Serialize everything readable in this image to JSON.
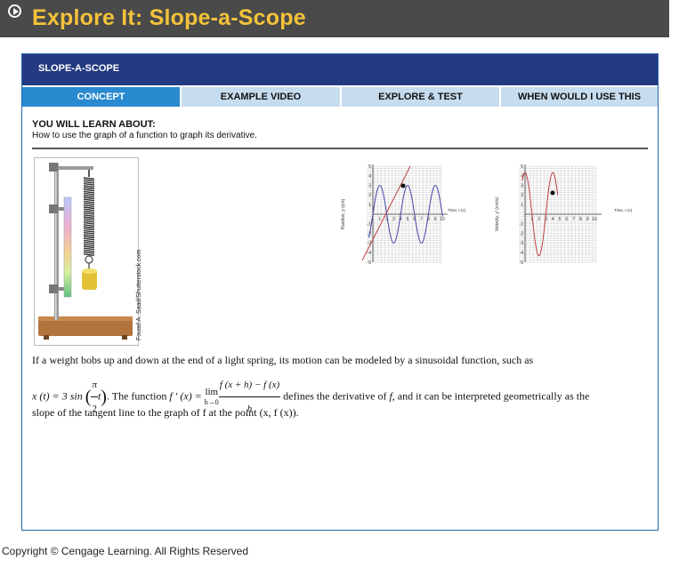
{
  "header": {
    "title": "Explore It: Slope-a-Scope"
  },
  "panel": {
    "title": "SLOPE-A-SCOPE"
  },
  "tabs": [
    {
      "label": "CONCEPT"
    },
    {
      "label": "EXAMPLE VIDEO"
    },
    {
      "label": "EXPLORE & TEST"
    },
    {
      "label": "WHEN WOULD I USE THIS"
    }
  ],
  "learn": {
    "title": "YOU WILL LEARN ABOUT:",
    "text": "How to use the graph of a function to graph its derivative."
  },
  "photo_credit": "Fouad A. Saad/Shutterstock.com",
  "graph1": {
    "ylabel": "Position, y (cm)",
    "xlabel": "Time, t (s)",
    "yticks": [
      "5",
      "4",
      "3",
      "2",
      "1",
      "-1",
      "-2",
      "-3",
      "-4",
      "-5"
    ],
    "xticks": [
      "1",
      "2",
      "3",
      "4",
      "5",
      "6",
      "7",
      "8",
      "9",
      "10"
    ]
  },
  "graph2": {
    "ylabel": "Velocity, y' (cm/s)",
    "xlabel": "Time, t (s)",
    "yticks": [
      "5",
      "4",
      "3",
      "2",
      "1",
      "-1",
      "-2",
      "-3",
      "-4",
      "-5"
    ],
    "xticks": [
      "1",
      "2",
      "3",
      "4",
      "5",
      "6",
      "7",
      "8",
      "9",
      "10"
    ]
  },
  "body": {
    "p1": "If a weight bobs up and down at the end of a light spring, its motion can be modeled by a sinusoidal function, such as",
    "x_func": "x (t) = 3 sin",
    "pi": "π",
    "two": "2",
    "t": "t",
    "mid1": ". The function ",
    "fprime": "f ′ (x) = ",
    "lim": "lim",
    "lim_sub": "h→0",
    "num": "f (x + h) − f (x)",
    "den": "h",
    "mid2": " defines the derivative of ",
    "f": "f",
    "mid3": ", and it can be interpreted geometrically as the",
    "p3": "slope of the tangent line to the graph of f at the point (x, f (x))."
  },
  "footer": "Copyright © Cengage Learning. All Rights Reserved"
}
